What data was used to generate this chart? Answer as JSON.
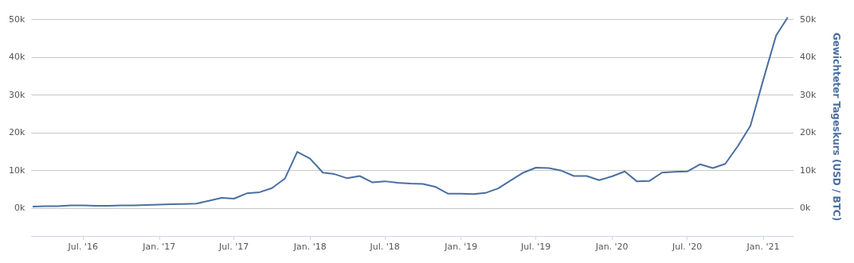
{
  "chart_data": {
    "type": "line",
    "y2label": "Gewichteter Tageskurs (USD / BTC)",
    "x": [
      "2016-03",
      "2016-04",
      "2016-05",
      "2016-06",
      "2016-07",
      "2016-08",
      "2016-09",
      "2016-10",
      "2016-11",
      "2016-12",
      "2017-01",
      "2017-02",
      "2017-03",
      "2017-04",
      "2017-05",
      "2017-06",
      "2017-07",
      "2017-08",
      "2017-09",
      "2017-10",
      "2017-11",
      "2017-12",
      "2018-01",
      "2018-02",
      "2018-03",
      "2018-04",
      "2018-05",
      "2018-06",
      "2018-07",
      "2018-08",
      "2018-09",
      "2018-10",
      "2018-11",
      "2018-12",
      "2019-01",
      "2019-02",
      "2019-03",
      "2019-04",
      "2019-05",
      "2019-06",
      "2019-07",
      "2019-08",
      "2019-09",
      "2019-10",
      "2019-11",
      "2019-12",
      "2020-01",
      "2020-02",
      "2020-03",
      "2020-04",
      "2020-05",
      "2020-06",
      "2020-07",
      "2020-08",
      "2020-09",
      "2020-10",
      "2020-11",
      "2020-12",
      "2021-01",
      "2021-02",
      "2021-03"
    ],
    "series": [
      {
        "color": "#4a6fa0",
        "values": [
          400,
          500,
          500,
          700,
          700,
          600,
          600,
          700,
          700,
          800,
          900,
          1000,
          1100,
          1200,
          1900,
          2700,
          2500,
          3900,
          4200,
          5300,
          7800,
          14900,
          13100,
          9400,
          9000,
          7900,
          8500,
          6800,
          7100,
          6700,
          6500,
          6400,
          5600,
          3800,
          3800,
          3700,
          4000,
          5200,
          7300,
          9400,
          10700,
          10600,
          9900,
          8500,
          8500,
          7400,
          8400,
          9700,
          7100,
          7200,
          9400,
          9600,
          9700,
          11600,
          10600,
          11700,
          16500,
          21800,
          34000,
          45700,
          50500
        ]
      }
    ],
    "xlim": [
      "2016-02-27",
      "2021-03-15"
    ],
    "xticks": [
      {
        "value": "2016-07",
        "label": "Jul. '16"
      },
      {
        "value": "2017-01",
        "label": "Jan. '17"
      },
      {
        "value": "2017-07",
        "label": "Jul. '17"
      },
      {
        "value": "2018-01",
        "label": "Jan. '18"
      },
      {
        "value": "2018-07",
        "label": "Jul. '18"
      },
      {
        "value": "2019-01",
        "label": "Jan. '19"
      },
      {
        "value": "2019-07",
        "label": "Jul. '19"
      },
      {
        "value": "2020-01",
        "label": "Jan. '20"
      },
      {
        "value": "2020-07",
        "label": "Jul. '20"
      },
      {
        "value": "2021-01",
        "label": "Jan. '21"
      }
    ],
    "ylim": [
      -7400,
      50500
    ],
    "yticks": [
      {
        "value": 0,
        "label": "0k"
      },
      {
        "value": 10000,
        "label": "10k"
      },
      {
        "value": 20000,
        "label": "20k"
      },
      {
        "value": 30000,
        "label": "30k"
      },
      {
        "value": 40000,
        "label": "40k"
      },
      {
        "value": 50000,
        "label": "50k"
      }
    ],
    "y2lim": [
      -7400,
      50500
    ],
    "y2ticks": [
      {
        "value": 0,
        "label": "0k"
      },
      {
        "value": 10000,
        "label": "10k"
      },
      {
        "value": 20000,
        "label": "20k"
      },
      {
        "value": 30000,
        "label": "30k"
      },
      {
        "value": 40000,
        "label": "40k"
      },
      {
        "value": 50000,
        "label": "50k"
      }
    ],
    "grid": "y",
    "marker": "none",
    "line_style": "solid"
  }
}
